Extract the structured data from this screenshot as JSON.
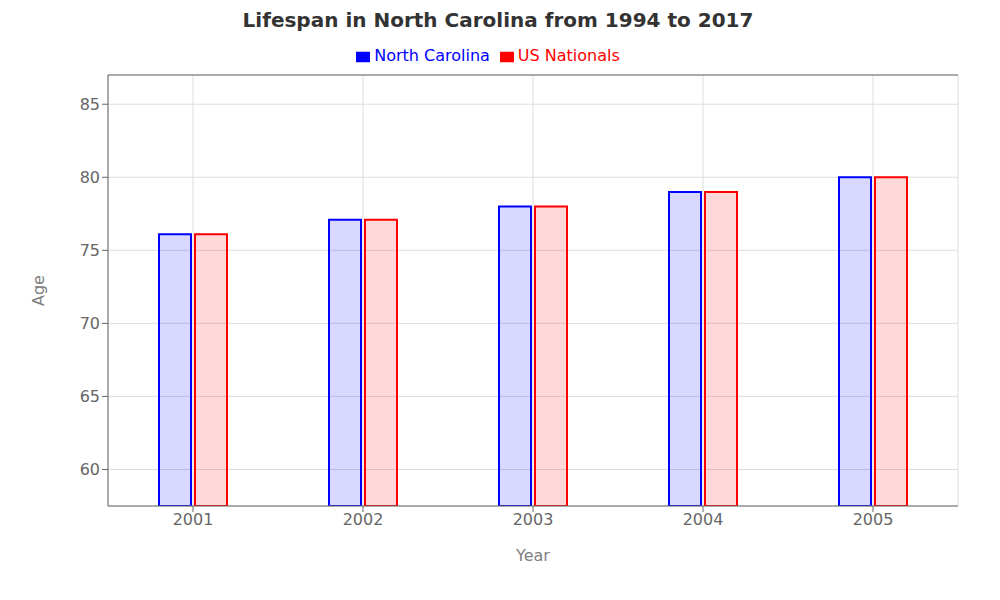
{
  "chart_data": {
    "type": "bar",
    "title": "Lifespan in North Carolina from 1994 to 2017",
    "x_label": "Year",
    "y_label": "Age",
    "categories": [
      "2001",
      "2002",
      "2003",
      "2004",
      "2005"
    ],
    "series": [
      {
        "name": "North Carolina",
        "color": "#0000ff",
        "values": [
          76.1,
          77.1,
          78.0,
          79.0,
          80.0
        ]
      },
      {
        "name": "US Nationals",
        "color": "#ff0000",
        "values": [
          76.1,
          77.1,
          78.0,
          79.0,
          80.0
        ]
      }
    ],
    "ylim": [
      57.5,
      87
    ],
    "yticks": [
      60,
      65,
      70,
      75,
      80,
      85
    ],
    "grid": true,
    "legend": "top"
  }
}
